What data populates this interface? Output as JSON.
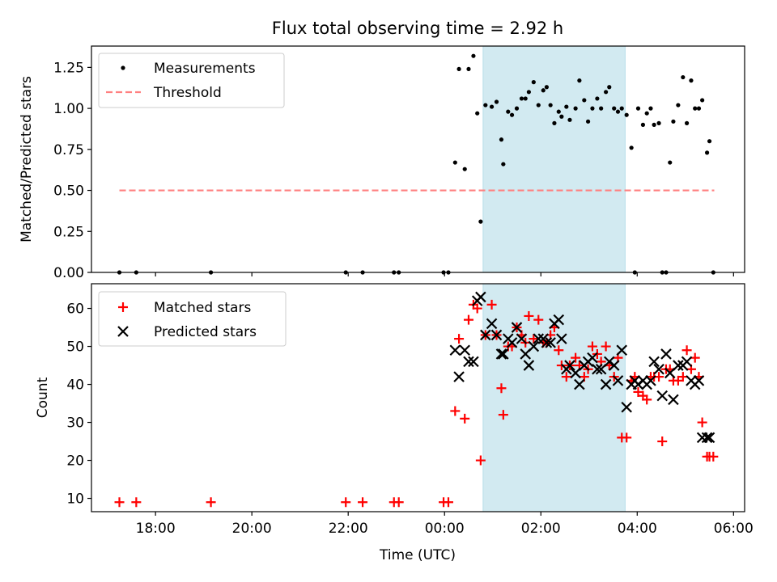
{
  "chart_data": [
    {
      "type": "scatter",
      "title": "Flux total observing time = 2.92 h",
      "xlabel": "",
      "ylabel": "Matched/Predicted stars",
      "ylim": [
        0,
        1.38
      ],
      "yticks": [
        0.0,
        0.25,
        0.5,
        0.75,
        1.0,
        1.25
      ],
      "ytick_labels": [
        "0.00",
        "0.25",
        "0.50",
        "0.75",
        "1.00",
        "1.25"
      ],
      "xlim_hours": [
        16.67,
        30.23
      ],
      "shaded_region_hours": [
        24.8,
        27.75
      ],
      "legend_position": "upper-left",
      "series": [
        {
          "name": "Measurements",
          "marker": "dot",
          "color": "#000000",
          "x": [
            17.25,
            17.6,
            19.15,
            21.95,
            22.3,
            22.95,
            23.05,
            23.98,
            24.08,
            24.22,
            24.3,
            24.42,
            24.5,
            24.6,
            24.68,
            24.75,
            24.85,
            24.98,
            25.08,
            25.18,
            25.22,
            25.32,
            25.4,
            25.5,
            25.6,
            25.68,
            25.75,
            25.85,
            25.95,
            26.05,
            26.12,
            26.2,
            26.28,
            26.37,
            26.43,
            26.53,
            26.6,
            26.72,
            26.8,
            26.9,
            26.98,
            27.07,
            27.17,
            27.25,
            27.35,
            27.42,
            27.52,
            27.6,
            27.68,
            27.78,
            27.88,
            27.95,
            28.02,
            28.12,
            28.2,
            28.28,
            28.35,
            28.45,
            28.52,
            28.6,
            28.68,
            28.75,
            28.85,
            28.95,
            29.03,
            29.12,
            29.2,
            29.28,
            29.35,
            29.45,
            29.5,
            29.58
          ],
          "y": [
            0,
            0,
            0,
            0,
            0,
            0,
            0,
            0,
            0,
            0.67,
            1.24,
            0.63,
            1.24,
            1.32,
            0.97,
            0.31,
            1.02,
            1.01,
            1.04,
            0.81,
            0.66,
            0.98,
            0.96,
            1.0,
            1.06,
            1.06,
            1.1,
            1.16,
            1.02,
            1.11,
            1.13,
            1.02,
            0.91,
            0.98,
            0.95,
            1.01,
            0.93,
            1.0,
            1.17,
            1.05,
            0.92,
            1.0,
            1.06,
            1.0,
            1.1,
            1.13,
            1.0,
            0.98,
            1.0,
            0.96,
            0.76,
            0,
            1.0,
            0.9,
            0.97,
            1.0,
            0.9,
            0.91,
            0,
            0,
            0.67,
            0.92,
            1.02,
            1.19,
            0.91,
            1.17,
            1.0,
            1.0,
            1.05,
            0.73,
            0.8,
            0
          ]
        },
        {
          "name": "Threshold",
          "style": "dashed",
          "color": "#ff8080",
          "x": [
            17.25,
            29.6
          ],
          "y": [
            0.5,
            0.5
          ]
        }
      ]
    },
    {
      "type": "scatter",
      "title": "",
      "xlabel": "Time (UTC)",
      "ylabel": "Count",
      "ylim": [
        6.5,
        66.5
      ],
      "yticks": [
        10,
        20,
        30,
        40,
        50,
        60
      ],
      "ytick_labels": [
        "10",
        "20",
        "30",
        "40",
        "50",
        "60"
      ],
      "xlim_hours": [
        16.67,
        30.23
      ],
      "xticks_hours": [
        18,
        20,
        22,
        24,
        26,
        28,
        30
      ],
      "xtick_labels": [
        "18:00",
        "20:00",
        "22:00",
        "00:00",
        "02:00",
        "04:00",
        "06:00"
      ],
      "shaded_region_hours": [
        24.8,
        27.75
      ],
      "legend_position": "upper-left",
      "series": [
        {
          "name": "Matched stars",
          "marker": "plus",
          "color": "#ff0000",
          "x": [
            17.25,
            17.6,
            19.15,
            21.95,
            22.3,
            22.95,
            23.05,
            23.98,
            24.08,
            24.22,
            24.3,
            24.42,
            24.5,
            24.6,
            24.68,
            24.75,
            24.85,
            24.98,
            25.08,
            25.18,
            25.22,
            25.32,
            25.4,
            25.5,
            25.6,
            25.68,
            25.75,
            25.85,
            25.95,
            26.05,
            26.12,
            26.2,
            26.28,
            26.37,
            26.43,
            26.53,
            26.6,
            26.72,
            26.8,
            26.9,
            26.98,
            27.07,
            27.17,
            27.25,
            27.35,
            27.42,
            27.52,
            27.6,
            27.68,
            27.78,
            27.88,
            27.95,
            28.02,
            28.12,
            28.2,
            28.28,
            28.35,
            28.45,
            28.52,
            28.6,
            28.68,
            28.75,
            28.85,
            28.95,
            29.03,
            29.12,
            29.2,
            29.28,
            29.35,
            29.45,
            29.5,
            29.58
          ],
          "y": [
            9,
            9,
            9,
            9,
            9,
            9,
            9,
            9,
            9,
            33,
            52,
            31,
            57,
            61,
            60,
            20,
            53,
            61,
            53,
            39,
            32,
            50,
            50,
            55,
            53,
            51,
            58,
            52,
            57,
            51,
            51,
            53,
            55,
            49,
            45,
            42,
            45,
            47,
            45,
            42,
            44,
            50,
            48,
            46,
            50,
            45,
            42,
            47,
            26,
            26,
            41,
            42,
            38,
            37,
            36,
            42,
            42,
            42,
            25,
            44,
            44,
            41,
            41,
            42,
            49,
            44,
            47,
            42,
            30,
            21,
            21,
            21
          ]
        },
        {
          "name": "Predicted stars",
          "marker": "x",
          "color": "#000000",
          "x": [
            24.22,
            24.3,
            24.42,
            24.5,
            24.6,
            24.68,
            24.75,
            24.85,
            24.98,
            25.08,
            25.18,
            25.22,
            25.32,
            25.4,
            25.5,
            25.6,
            25.68,
            25.75,
            25.85,
            25.95,
            26.05,
            26.12,
            26.2,
            26.28,
            26.37,
            26.43,
            26.53,
            26.6,
            26.72,
            26.8,
            26.9,
            26.98,
            27.07,
            27.17,
            27.25,
            27.35,
            27.42,
            27.52,
            27.6,
            27.68,
            27.78,
            27.88,
            27.95,
            28.02,
            28.12,
            28.2,
            28.28,
            28.35,
            28.45,
            28.52,
            28.6,
            28.68,
            28.75,
            28.85,
            28.95,
            29.03,
            29.12,
            29.2,
            29.28,
            29.35,
            29.45,
            29.5
          ],
          "y": [
            49,
            42,
            49,
            46,
            46,
            62,
            63,
            53,
            56,
            53,
            48,
            48,
            52,
            51,
            55,
            52,
            48,
            45,
            50,
            52,
            52,
            51,
            51,
            56,
            57,
            52,
            44,
            45,
            43,
            40,
            45,
            46,
            47,
            44,
            44,
            40,
            46,
            45,
            41,
            49,
            34,
            40,
            41,
            40,
            41,
            40,
            41,
            46,
            44,
            37,
            48,
            43,
            36,
            45,
            45,
            46,
            41,
            40,
            41,
            26,
            26,
            26
          ]
        }
      ]
    }
  ]
}
